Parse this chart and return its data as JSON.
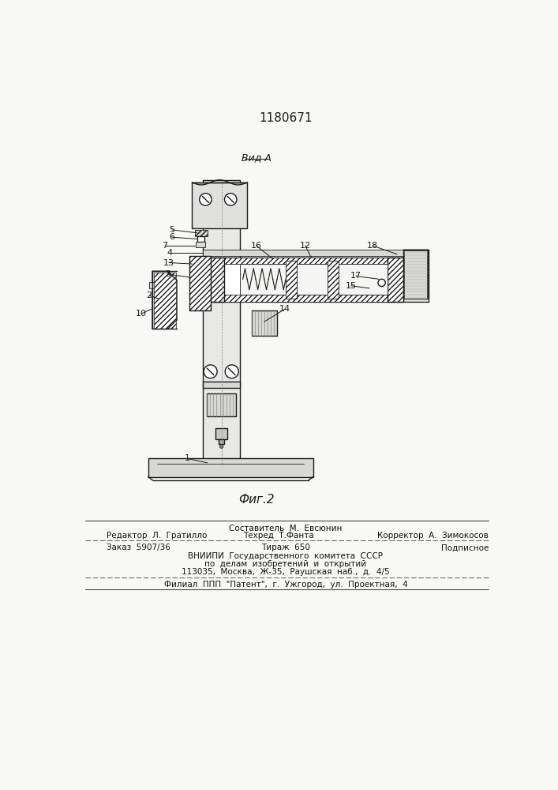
{
  "patent_number": "1180671",
  "fig_label": "Фиг.2",
  "view_label": "Вид A",
  "bg_color": "#f8f8f5",
  "line_color": "#1a1a1a",
  "footer_col1_line1": "Редактор  Л.  Гратилло",
  "footer_col2_line1": "Составитель  М.  Евсюнин",
  "footer_col2_line2": "Техред  Т.Фанта",
  "footer_col3_line2": "Корректор  А.  Зимокосов",
  "footer_order": "Заказ  5907/36",
  "footer_tirazh": "Тираж  650",
  "footer_podp": "Подписное",
  "footer_vniip1": "ВНИИПИ  Государственного  комитета  СССР",
  "footer_vniip2": "по  делам  изобретений  и  открытий",
  "footer_addr": "113035,  Москва,  Ж-35,  Раушская  наб.,  д.  4/5",
  "footer_filial": "Филиал  ППП  \"Патент\",  г.  Ужгород,  ул.  Проектная,  4"
}
